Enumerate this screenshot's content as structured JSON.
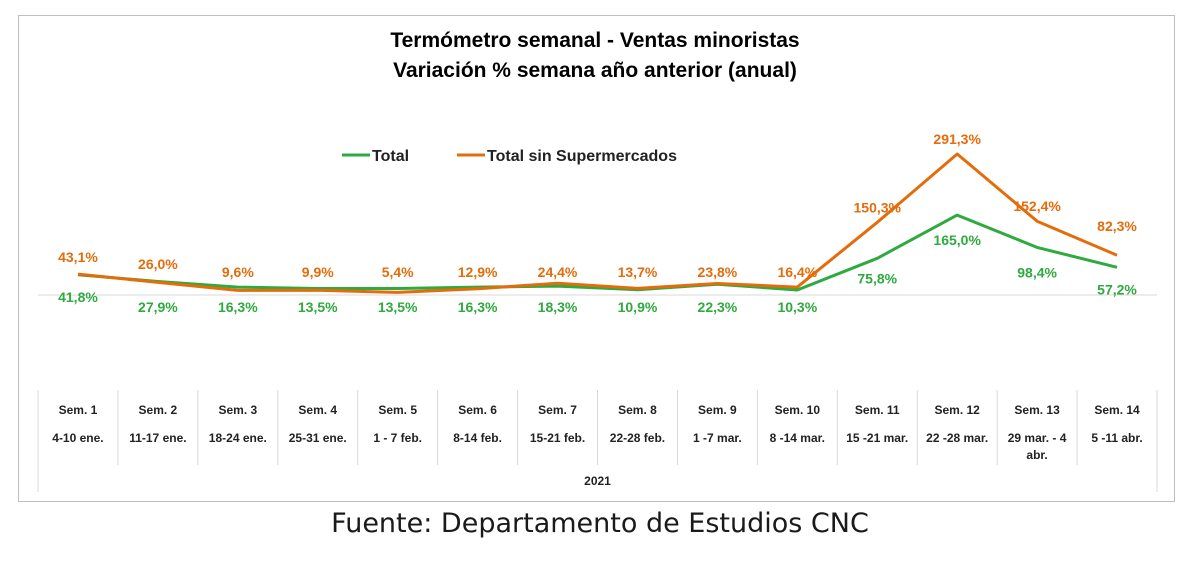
{
  "source": "Fuente: Departamento de Estudios CNC",
  "colors": {
    "total": "#2EAA3E",
    "sin_super": "#E46C0A"
  },
  "chart_data": {
    "type": "line",
    "title": "Termómetro semanal - Ventas minoristas",
    "subtitle": "Variación % semana año anterior (anual)",
    "categories": [
      "Sem. 1",
      "Sem. 2",
      "Sem. 3",
      "Sem. 4",
      "Sem. 5",
      "Sem. 6",
      "Sem. 7",
      "Sem. 8",
      "Sem. 9",
      "Sem. 10",
      "Sem. 11",
      "Sem. 12",
      "Sem. 13",
      "Sem. 14"
    ],
    "date_ranges": [
      [
        "4-10 ene."
      ],
      [
        "11-17 ene."
      ],
      [
        "18-24 ene."
      ],
      [
        "25-31 ene."
      ],
      [
        "1 - 7 feb."
      ],
      [
        "8-14 feb."
      ],
      [
        "15-21 feb."
      ],
      [
        "22-28 feb."
      ],
      [
        "1 -7 mar."
      ],
      [
        "8 -14 mar."
      ],
      [
        "15 -21 mar."
      ],
      [
        "22 -28 mar."
      ],
      [
        "29 mar. - 4",
        "abr."
      ],
      [
        "5 -11 abr."
      ]
    ],
    "year_label": "2021",
    "legend_position": "top-center",
    "grid": false,
    "series": [
      {
        "name": "Total",
        "values": [
          41.8,
          27.9,
          16.3,
          13.5,
          13.5,
          16.3,
          18.3,
          10.9,
          22.3,
          10.3,
          75.8,
          165.0,
          98.4,
          57.2
        ],
        "labels": [
          "41,8%",
          "27,9%",
          "16,3%",
          "13,5%",
          "13,5%",
          "16,3%",
          "18,3%",
          "10,9%",
          "22,3%",
          "10,3%",
          "75,8%",
          "165,0%",
          "98,4%",
          "57,2%"
        ]
      },
      {
        "name": "Total sin Supermercados",
        "values": [
          43.1,
          26.0,
          9.6,
          9.9,
          5.4,
          12.9,
          24.4,
          13.7,
          23.8,
          16.4,
          150.3,
          291.3,
          152.4,
          82.3
        ],
        "labels": [
          "43,1%",
          "26,0%",
          "9,6%",
          "9,9%",
          "5,4%",
          "12,9%",
          "24,4%",
          "13,7%",
          "23,8%",
          "16,4%",
          "150,3%",
          "291,3%",
          "152,4%",
          "82,3%"
        ]
      }
    ]
  }
}
